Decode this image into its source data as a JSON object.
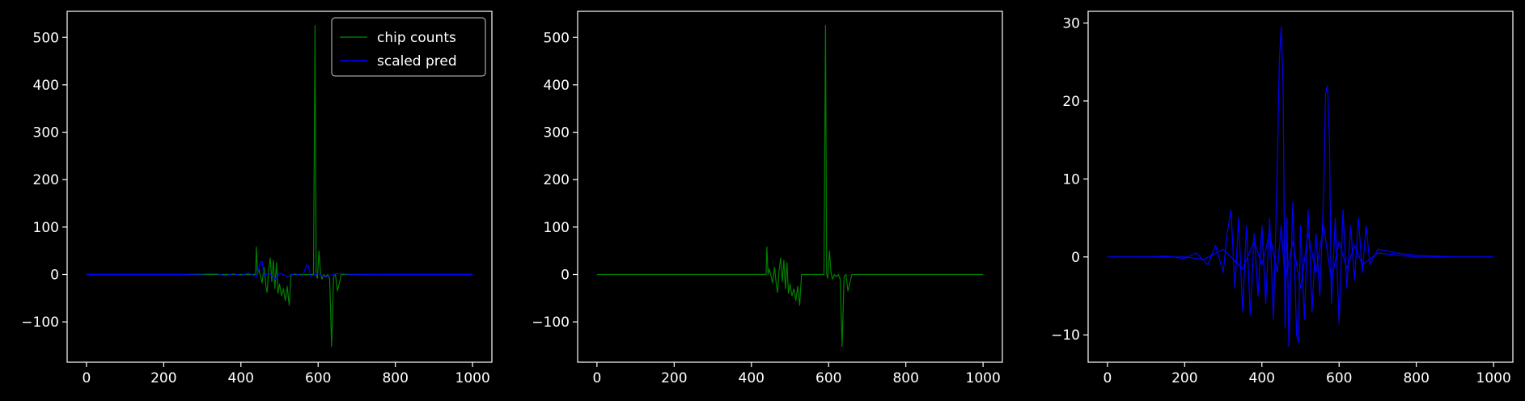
{
  "chart_data": [
    {
      "type": "line",
      "title": "",
      "xlabel": "",
      "ylabel": "",
      "xlim": [
        -50,
        1050
      ],
      "ylim": [
        -185,
        555
      ],
      "xticks": [
        0,
        200,
        400,
        600,
        800,
        1000
      ],
      "yticks": [
        -100,
        0,
        100,
        200,
        300,
        400,
        500
      ],
      "legend": {
        "placement": "upper-right",
        "entries": [
          "chip counts",
          "scaled pred"
        ]
      },
      "series": [
        {
          "name": "chip counts",
          "color": "#008000",
          "x": [
            0,
            100,
            200,
            300,
            400,
            430,
            438,
            440,
            443,
            446,
            450,
            455,
            460,
            465,
            468,
            472,
            476,
            480,
            484,
            488,
            492,
            496,
            500,
            505,
            510,
            515,
            520,
            525,
            530,
            540,
            550,
            560,
            570,
            580,
            588,
            592,
            595,
            598,
            602,
            606,
            610,
            615,
            620,
            625,
            630,
            635,
            640,
            645,
            650,
            660,
            680,
            700,
            800,
            900,
            1000
          ],
          "values": [
            0,
            0,
            0,
            0,
            0,
            0,
            0,
            58,
            0,
            12,
            0,
            -18,
            15,
            -25,
            -38,
            10,
            35,
            -15,
            30,
            -30,
            25,
            -40,
            -20,
            -45,
            -30,
            -55,
            -25,
            -65,
            0,
            0,
            0,
            0,
            0,
            0,
            0,
            525,
            0,
            -8,
            50,
            5,
            -10,
            0,
            -5,
            0,
            -10,
            -152,
            -5,
            0,
            -35,
            0,
            0,
            0,
            0,
            0,
            0
          ]
        },
        {
          "name": "scaled pred",
          "color": "#0000ff",
          "x": [
            0,
            100,
            200,
            250,
            300,
            320,
            340,
            360,
            380,
            400,
            420,
            440,
            450,
            455,
            460,
            470,
            480,
            490,
            500,
            520,
            540,
            560,
            570,
            575,
            580,
            600,
            620,
            640,
            660,
            680,
            700,
            750,
            800,
            900,
            1000
          ],
          "values": [
            0,
            0,
            0,
            0.2,
            1,
            2,
            1.5,
            -3,
            2,
            -2,
            3,
            -5,
            25,
            28,
            -4,
            3,
            -2,
            -10,
            3,
            -4,
            2,
            -3,
            20,
            18,
            -4,
            2,
            -6,
            1,
            2,
            0.5,
            0.3,
            0.1,
            0,
            0,
            0
          ]
        }
      ]
    },
    {
      "type": "line",
      "title": "",
      "xlabel": "",
      "ylabel": "",
      "xlim": [
        -50,
        1050
      ],
      "ylim": [
        -185,
        555
      ],
      "xticks": [
        0,
        200,
        400,
        600,
        800,
        1000
      ],
      "yticks": [
        -100,
        0,
        100,
        200,
        300,
        400,
        500
      ],
      "series": [
        {
          "color": "#008000",
          "x": [
            0,
            100,
            200,
            300,
            400,
            430,
            438,
            440,
            443,
            446,
            450,
            455,
            460,
            465,
            468,
            472,
            476,
            480,
            484,
            488,
            492,
            496,
            500,
            505,
            510,
            515,
            520,
            525,
            530,
            540,
            550,
            560,
            570,
            580,
            588,
            592,
            595,
            598,
            602,
            606,
            610,
            615,
            620,
            625,
            630,
            635,
            640,
            645,
            650,
            660,
            680,
            700,
            800,
            900,
            1000
          ],
          "values": [
            0,
            0,
            0,
            0,
            0,
            0,
            0,
            58,
            0,
            12,
            0,
            -18,
            15,
            -25,
            -38,
            10,
            35,
            -15,
            30,
            -30,
            25,
            -40,
            -20,
            -45,
            -30,
            -55,
            -25,
            -65,
            0,
            0,
            0,
            0,
            0,
            0,
            0,
            525,
            0,
            -8,
            50,
            5,
            -10,
            0,
            -5,
            0,
            -10,
            -152,
            -5,
            0,
            -35,
            0,
            0,
            0,
            0,
            0,
            0
          ]
        }
      ]
    },
    {
      "type": "line",
      "title": "",
      "xlabel": "",
      "ylabel": "",
      "xlim": [
        -50,
        1050
      ],
      "ylim": [
        -13.5,
        31.5
      ],
      "xticks": [
        0,
        200,
        400,
        600,
        800,
        1000
      ],
      "yticks": [
        -10,
        0,
        10,
        20,
        30
      ],
      "series": [
        {
          "color": "#0000ff",
          "x": [
            0,
            100,
            150,
            200,
            230,
            260,
            280,
            300,
            310,
            320,
            330,
            340,
            350,
            360,
            370,
            380,
            390,
            400,
            410,
            420,
            430,
            440,
            445,
            450,
            455,
            460,
            465,
            470,
            480,
            490,
            495,
            500,
            510,
            520,
            530,
            540,
            550,
            560,
            565,
            570,
            575,
            580,
            590,
            600,
            610,
            620,
            630,
            640,
            650,
            660,
            670,
            680,
            700,
            750,
            800,
            900,
            1000
          ],
          "values": [
            0,
            0,
            0.1,
            -0.2,
            0.5,
            -1,
            1.5,
            -2,
            3,
            6,
            -4,
            5,
            -7,
            4,
            -7.5,
            3,
            -5,
            4,
            -6,
            5,
            -8,
            12,
            25,
            29.5,
            22,
            -9,
            5,
            -11.5,
            7,
            -10,
            -11,
            4,
            -8,
            6,
            -7,
            3,
            -5,
            8,
            21,
            22,
            15,
            -6,
            5,
            -8.5,
            6,
            -4,
            4,
            -3,
            5,
            -2,
            4,
            -1,
            1,
            0.5,
            0.2,
            0,
            0
          ]
        },
        {
          "color": "#0000ff",
          "x": [
            0,
            100,
            200,
            250,
            300,
            350,
            380,
            400,
            420,
            440,
            450,
            460,
            480,
            500,
            520,
            540,
            560,
            580,
            600,
            620,
            640,
            660,
            700,
            800,
            1000
          ],
          "values": [
            0,
            0,
            0,
            -0.3,
            1,
            -1.5,
            2,
            -1,
            3,
            -2,
            4,
            -3,
            2,
            -4,
            3,
            -2,
            4,
            -3,
            2,
            -1.5,
            1.5,
            -1,
            0.5,
            0,
            0
          ]
        }
      ]
    }
  ]
}
